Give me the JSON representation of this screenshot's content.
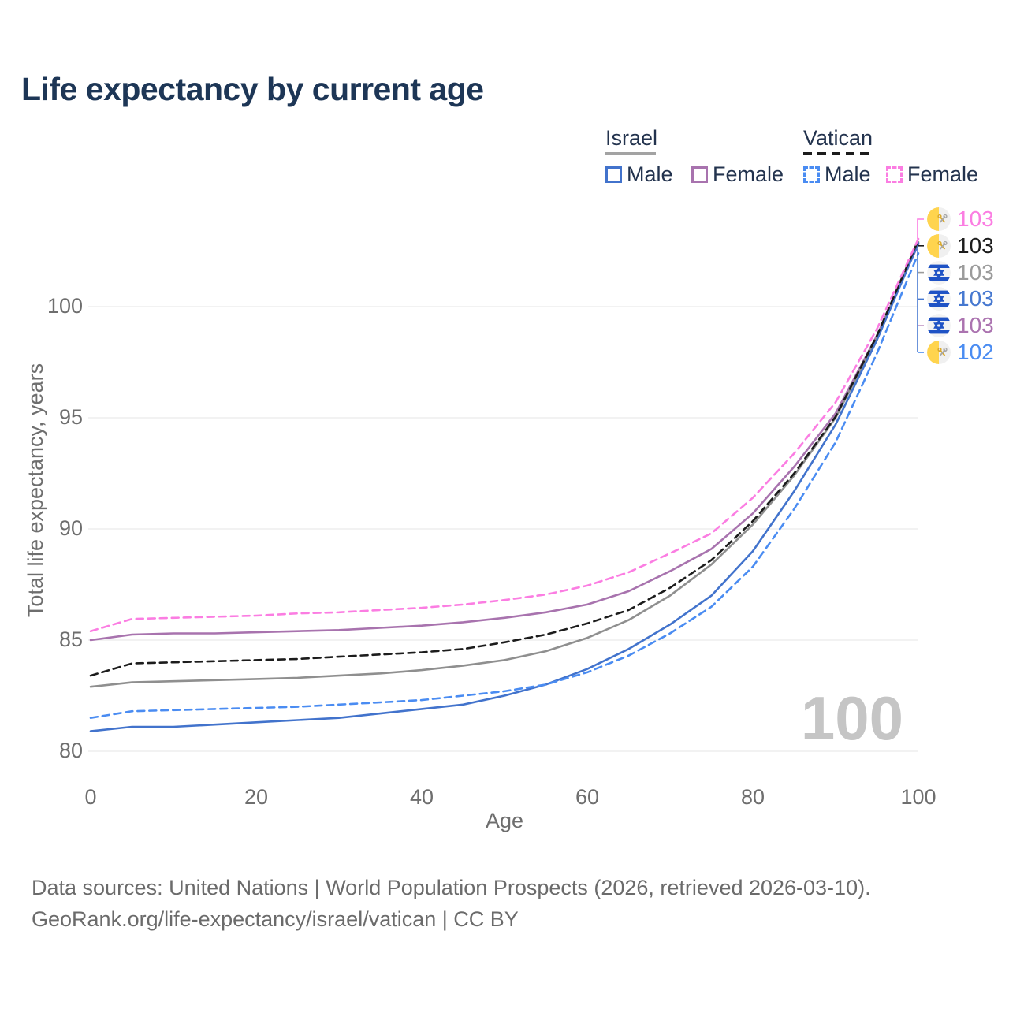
{
  "title": "Life expectancy by current age",
  "legend": {
    "groups": [
      {
        "name": "Israel",
        "line_style": "solid",
        "underline_color": "#a3a3a3",
        "items": [
          {
            "label": "Male",
            "color": "#4273cc"
          },
          {
            "label": "Female",
            "color": "#a873ae"
          }
        ]
      },
      {
        "name": "Vatican",
        "line_style": "dashed",
        "underline_color": "#1c1c1c",
        "items": [
          {
            "label": "Male",
            "color": "#4a8cf2"
          },
          {
            "label": "Female",
            "color": "#fb7de2"
          }
        ]
      }
    ]
  },
  "chart_data": {
    "type": "line",
    "title": "Life expectancy by current age",
    "xlabel": "Age",
    "ylabel": "Total life expectancy, years",
    "x": [
      0,
      5,
      10,
      15,
      20,
      25,
      30,
      35,
      40,
      45,
      50,
      55,
      60,
      65,
      70,
      75,
      80,
      85,
      90,
      95,
      100
    ],
    "xlim": [
      0,
      100
    ],
    "ylim": [
      80,
      103.5
    ],
    "xticks": [
      0,
      20,
      40,
      60,
      80,
      100
    ],
    "yticks": [
      80,
      85,
      90,
      95,
      100
    ],
    "grid": "horizontal-only",
    "legend_position": "top-right",
    "series": [
      {
        "name": "Israel Female",
        "country": "Israel",
        "sex": "Female",
        "style": "solid",
        "color": "#a873ae",
        "values": [
          85.0,
          85.25,
          85.3,
          85.3,
          85.35,
          85.4,
          85.45,
          85.55,
          85.65,
          85.8,
          86.0,
          86.25,
          86.6,
          87.2,
          88.1,
          89.1,
          90.7,
          92.8,
          95.2,
          98.7,
          102.8
        ],
        "end_label": "103"
      },
      {
        "name": "Israel (both sexes)",
        "country": "Israel",
        "sex": "All",
        "style": "solid",
        "color": "#8f8f8f",
        "values": [
          82.9,
          83.1,
          83.15,
          83.2,
          83.25,
          83.3,
          83.4,
          83.5,
          83.65,
          83.85,
          84.1,
          84.5,
          85.1,
          85.9,
          87.0,
          88.4,
          90.2,
          92.4,
          95.0,
          98.6,
          102.9
        ],
        "end_label": "103"
      },
      {
        "name": "Israel Male",
        "country": "Israel",
        "sex": "Male",
        "style": "solid",
        "color": "#4273cc",
        "values": [
          80.9,
          81.1,
          81.1,
          81.2,
          81.3,
          81.4,
          81.5,
          81.7,
          81.9,
          82.1,
          82.5,
          83.0,
          83.7,
          84.6,
          85.7,
          87.0,
          89.0,
          91.7,
          94.7,
          98.5,
          102.85
        ],
        "end_label": "103"
      },
      {
        "name": "Vatican (both sexes)",
        "country": "Vatican",
        "sex": "All",
        "style": "dashed",
        "color": "#1c1c1c",
        "values": [
          83.4,
          83.95,
          84.0,
          84.05,
          84.1,
          84.15,
          84.25,
          84.35,
          84.45,
          84.6,
          84.9,
          85.25,
          85.75,
          86.35,
          87.35,
          88.6,
          90.35,
          92.5,
          95.05,
          98.7,
          103.0
        ],
        "end_label": "103"
      },
      {
        "name": "Vatican Female",
        "country": "Vatican",
        "sex": "Female",
        "style": "dashed",
        "color": "#fb7de2",
        "values": [
          85.4,
          85.95,
          86.0,
          86.05,
          86.1,
          86.2,
          86.25,
          86.35,
          86.45,
          86.6,
          86.8,
          87.05,
          87.45,
          88.05,
          88.9,
          89.8,
          91.4,
          93.4,
          95.7,
          99.0,
          103.05
        ],
        "end_label": "103"
      },
      {
        "name": "Vatican Male",
        "country": "Vatican",
        "sex": "Male",
        "style": "dashed",
        "color": "#4a8cf2",
        "values": [
          81.5,
          81.8,
          81.85,
          81.9,
          81.95,
          82.0,
          82.1,
          82.2,
          82.3,
          82.5,
          82.7,
          83.0,
          83.55,
          84.3,
          85.3,
          86.5,
          88.3,
          90.9,
          93.9,
          97.9,
          102.4
        ],
        "end_label": "102"
      }
    ]
  },
  "right_labels": [
    {
      "flag": "vatican",
      "value": "103",
      "color": "#fb7de2"
    },
    {
      "flag": "vatican",
      "value": "103",
      "color": "#1c1c1c"
    },
    {
      "flag": "israel",
      "value": "103",
      "color": "#9b9b9b"
    },
    {
      "flag": "israel",
      "value": "103",
      "color": "#4678d0"
    },
    {
      "flag": "israel",
      "value": "103",
      "color": "#ab73b0"
    },
    {
      "flag": "vatican",
      "value": "102",
      "color": "#4a8cf2"
    }
  ],
  "watermark": "100",
  "axis": {
    "y_title": "Total life expectancy, years",
    "x_title": "Age"
  },
  "footer": {
    "line1": "Data sources: United Nations | World Population Prospects (2026, retrieved 2026-03-10).",
    "line2": "GeoRank.org/life-expectancy/israel/vatican | CC BY"
  }
}
